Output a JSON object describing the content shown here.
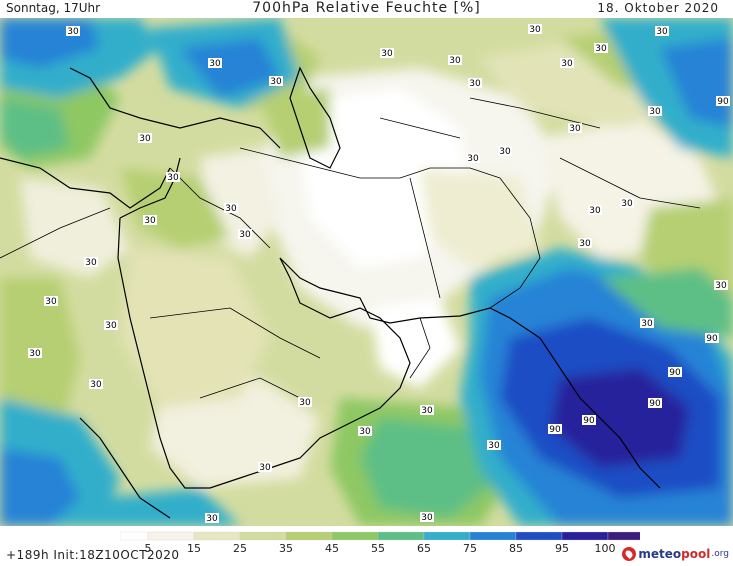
{
  "header": {
    "left": "Sonntag, 17Uhr",
    "title": "700hPa Relative Feuchte [%]",
    "date": "18. Oktober 2020"
  },
  "footer": {
    "run": "+189h Init:18Z10OCT2020",
    "brand_main": "meteo",
    "brand_accent": "pool",
    "brand_tld": ".org"
  },
  "legend": {
    "ticks": [
      "5",
      "15",
      "25",
      "35",
      "45",
      "55",
      "65",
      "75",
      "85",
      "95",
      "100"
    ],
    "colors": [
      "#ffffff",
      "#f5f3ea",
      "#e6e6c2",
      "#d3dca0",
      "#b6cf72",
      "#8ec864",
      "#5dbf85",
      "#33aecb",
      "#2583d6",
      "#1e4ec4",
      "#27229c",
      "#3a1e7c"
    ]
  },
  "map_labels": [
    {
      "text": "30"
    },
    {
      "text": "30"
    },
    {
      "text": "30"
    },
    {
      "text": "30"
    },
    {
      "text": "30"
    },
    {
      "text": "30"
    },
    {
      "text": "30"
    },
    {
      "text": "30"
    },
    {
      "text": "30"
    },
    {
      "text": "30"
    },
    {
      "text": "30"
    },
    {
      "text": "30"
    },
    {
      "text": "30"
    },
    {
      "text": "30"
    },
    {
      "text": "30"
    },
    {
      "text": "30"
    },
    {
      "text": "30"
    },
    {
      "text": "30"
    },
    {
      "text": "30"
    },
    {
      "text": "30"
    },
    {
      "text": "30"
    },
    {
      "text": "30"
    },
    {
      "text": "30"
    },
    {
      "text": "30"
    },
    {
      "text": "30"
    },
    {
      "text": "30"
    },
    {
      "text": "30"
    },
    {
      "text": "30"
    },
    {
      "text": "30"
    },
    {
      "text": "30"
    },
    {
      "text": "30"
    },
    {
      "text": "30"
    },
    {
      "text": "30"
    },
    {
      "text": "30"
    },
    {
      "text": "30"
    },
    {
      "text": "30"
    },
    {
      "text": "90"
    },
    {
      "text": "90"
    },
    {
      "text": "90"
    },
    {
      "text": "90"
    },
    {
      "text": "90"
    },
    {
      "text": "90"
    }
  ]
}
